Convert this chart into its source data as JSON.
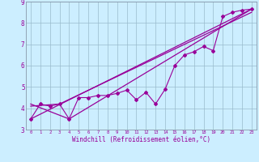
{
  "xlabel": "Windchill (Refroidissement éolien,°C)",
  "x": [
    0,
    1,
    2,
    3,
    4,
    5,
    6,
    7,
    8,
    9,
    10,
    11,
    12,
    13,
    14,
    15,
    16,
    17,
    18,
    19,
    20,
    21,
    22,
    23
  ],
  "line1": [
    3.5,
    4.2,
    4.1,
    4.2,
    3.5,
    4.5,
    4.5,
    4.6,
    4.6,
    4.7,
    4.85,
    4.4,
    4.75,
    4.2,
    4.9,
    6.0,
    6.5,
    6.65,
    6.9,
    6.7,
    8.3,
    8.5,
    8.6,
    8.65
  ],
  "line2_x": [
    0,
    23
  ],
  "line2_y": [
    3.5,
    8.65
  ],
  "line3_x": [
    0,
    4,
    23
  ],
  "line3_y": [
    4.2,
    3.5,
    8.65
  ],
  "line4_x": [
    0,
    3,
    23
  ],
  "line4_y": [
    4.1,
    4.2,
    8.5
  ],
  "line_color": "#990099",
  "bg_color": "#cceeff",
  "grid_color": "#99bbcc",
  "ylim": [
    3.0,
    9.0
  ],
  "xlim": [
    -0.5,
    23.5
  ],
  "yticks": [
    3,
    4,
    5,
    6,
    7,
    8,
    9
  ],
  "xticks": [
    0,
    1,
    2,
    3,
    4,
    5,
    6,
    7,
    8,
    9,
    10,
    11,
    12,
    13,
    14,
    15,
    16,
    17,
    18,
    19,
    20,
    21,
    22,
    23
  ],
  "ylabel_fontsize": 5.5,
  "xlabel_fontsize": 5.5,
  "ytick_fontsize": 5.5,
  "xtick_fontsize": 4.0
}
